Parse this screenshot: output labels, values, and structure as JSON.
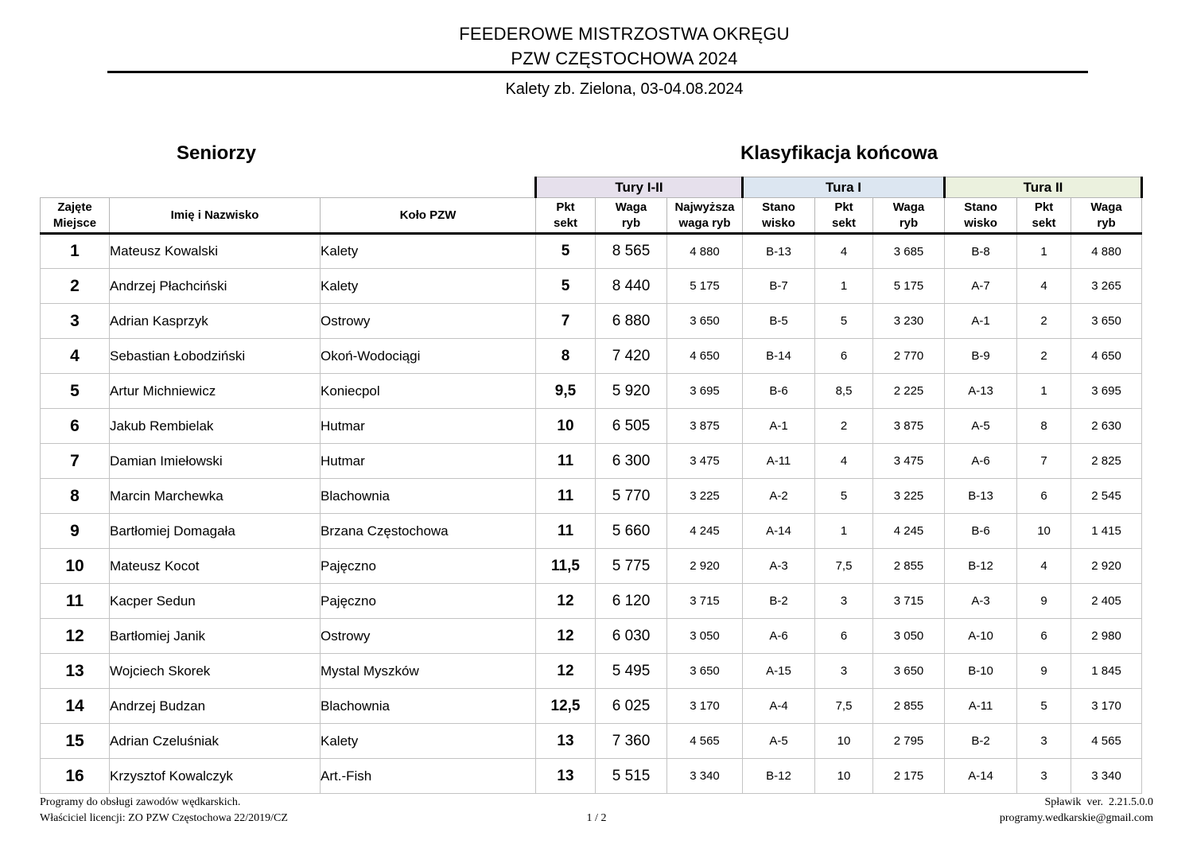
{
  "header": {
    "title_line1": "FEEDEROWE MISTRZOSTWA OKRĘGU",
    "title_line2": "PZW CZĘSTOCHOWA 2024",
    "subtitle": "Kalety zb. Zielona, 03-04.08.2024"
  },
  "sections": {
    "category_title": "Seniorzy",
    "classification_title": "Klasyfikacja końcowa"
  },
  "table": {
    "groups": [
      {
        "label": "Tury I-II",
        "color": "#e6e0ec"
      },
      {
        "label": "Tura I",
        "color": "#dce6f1"
      },
      {
        "label": "Tura II",
        "color": "#ebf1de"
      }
    ],
    "columns": [
      {
        "id": "place",
        "lines": [
          "Zajęte",
          "Miejsce"
        ]
      },
      {
        "id": "name",
        "lines": [
          "Imię i Nazwisko"
        ]
      },
      {
        "id": "club",
        "lines": [
          "Koło PZW"
        ]
      },
      {
        "id": "t12_pkt",
        "lines": [
          "Pkt",
          "sekt"
        ]
      },
      {
        "id": "t12_waga",
        "lines": [
          "Waga",
          "ryb"
        ]
      },
      {
        "id": "t12_best",
        "lines": [
          "Najwyższa",
          "waga ryb"
        ]
      },
      {
        "id": "t1_stan",
        "lines": [
          "Stano",
          "wisko"
        ]
      },
      {
        "id": "t1_pkt",
        "lines": [
          "Pkt",
          "sekt"
        ]
      },
      {
        "id": "t1_waga",
        "lines": [
          "Waga",
          "ryb"
        ]
      },
      {
        "id": "t2_stan",
        "lines": [
          "Stano",
          "wisko"
        ]
      },
      {
        "id": "t2_pkt",
        "lines": [
          "Pkt",
          "sekt"
        ]
      },
      {
        "id": "t2_waga",
        "lines": [
          "Waga",
          "ryb"
        ]
      }
    ],
    "row_fields": [
      "place",
      "name",
      "club",
      "t12_pkt",
      "t12_waga",
      "t12_best",
      "t1_stan",
      "t1_pkt",
      "t1_waga",
      "t2_stan",
      "t2_pkt",
      "t2_waga"
    ],
    "rows": [
      {
        "place": "1",
        "name": "Mateusz Kowalski",
        "club": "Kalety",
        "t12_pkt": "5",
        "t12_waga": "8 565",
        "t12_best": "4 880",
        "t1_stan": "B-13",
        "t1_pkt": "4",
        "t1_waga": "3 685",
        "t2_stan": "B-8",
        "t2_pkt": "1",
        "t2_waga": "4 880"
      },
      {
        "place": "2",
        "name": "Andrzej Płachciński",
        "club": "Kalety",
        "t12_pkt": "5",
        "t12_waga": "8 440",
        "t12_best": "5 175",
        "t1_stan": "B-7",
        "t1_pkt": "1",
        "t1_waga": "5 175",
        "t2_stan": "A-7",
        "t2_pkt": "4",
        "t2_waga": "3 265"
      },
      {
        "place": "3",
        "name": "Adrian Kasprzyk",
        "club": "Ostrowy",
        "t12_pkt": "7",
        "t12_waga": "6 880",
        "t12_best": "3 650",
        "t1_stan": "B-5",
        "t1_pkt": "5",
        "t1_waga": "3 230",
        "t2_stan": "A-1",
        "t2_pkt": "2",
        "t2_waga": "3 650"
      },
      {
        "place": "4",
        "name": "Sebastian Łobodziński",
        "club": "Okoń-Wodociągi",
        "t12_pkt": "8",
        "t12_waga": "7 420",
        "t12_best": "4 650",
        "t1_stan": "B-14",
        "t1_pkt": "6",
        "t1_waga": "2 770",
        "t2_stan": "B-9",
        "t2_pkt": "2",
        "t2_waga": "4 650"
      },
      {
        "place": "5",
        "name": "Artur Michniewicz",
        "club": "Koniecpol",
        "t12_pkt": "9,5",
        "t12_waga": "5 920",
        "t12_best": "3 695",
        "t1_stan": "B-6",
        "t1_pkt": "8,5",
        "t1_waga": "2 225",
        "t2_stan": "A-13",
        "t2_pkt": "1",
        "t2_waga": "3 695"
      },
      {
        "place": "6",
        "name": "Jakub Rembielak",
        "club": "Hutmar",
        "t12_pkt": "10",
        "t12_waga": "6 505",
        "t12_best": "3 875",
        "t1_stan": "A-1",
        "t1_pkt": "2",
        "t1_waga": "3 875",
        "t2_stan": "A-5",
        "t2_pkt": "8",
        "t2_waga": "2 630"
      },
      {
        "place": "7",
        "name": "Damian Imiełowski",
        "club": "Hutmar",
        "t12_pkt": "11",
        "t12_waga": "6 300",
        "t12_best": "3 475",
        "t1_stan": "A-11",
        "t1_pkt": "4",
        "t1_waga": "3 475",
        "t2_stan": "A-6",
        "t2_pkt": "7",
        "t2_waga": "2 825"
      },
      {
        "place": "8",
        "name": "Marcin Marchewka",
        "club": "Blachownia",
        "t12_pkt": "11",
        "t12_waga": "5 770",
        "t12_best": "3 225",
        "t1_stan": "A-2",
        "t1_pkt": "5",
        "t1_waga": "3 225",
        "t2_stan": "B-13",
        "t2_pkt": "6",
        "t2_waga": "2 545"
      },
      {
        "place": "9",
        "name": "Bartłomiej Domagała",
        "club": "Brzana Częstochowa",
        "t12_pkt": "11",
        "t12_waga": "5 660",
        "t12_best": "4 245",
        "t1_stan": "A-14",
        "t1_pkt": "1",
        "t1_waga": "4 245",
        "t2_stan": "B-6",
        "t2_pkt": "10",
        "t2_waga": "1 415"
      },
      {
        "place": "10",
        "name": "Mateusz Kocot",
        "club": "Pajęczno",
        "t12_pkt": "11,5",
        "t12_waga": "5 775",
        "t12_best": "2 920",
        "t1_stan": "A-3",
        "t1_pkt": "7,5",
        "t1_waga": "2 855",
        "t2_stan": "B-12",
        "t2_pkt": "4",
        "t2_waga": "2 920"
      },
      {
        "place": "11",
        "name": "Kacper Sedun",
        "club": "Pajęczno",
        "t12_pkt": "12",
        "t12_waga": "6 120",
        "t12_best": "3 715",
        "t1_stan": "B-2",
        "t1_pkt": "3",
        "t1_waga": "3 715",
        "t2_stan": "A-3",
        "t2_pkt": "9",
        "t2_waga": "2 405"
      },
      {
        "place": "12",
        "name": "Bartłomiej Janik",
        "club": "Ostrowy",
        "t12_pkt": "12",
        "t12_waga": "6 030",
        "t12_best": "3 050",
        "t1_stan": "A-6",
        "t1_pkt": "6",
        "t1_waga": "3 050",
        "t2_stan": "A-10",
        "t2_pkt": "6",
        "t2_waga": "2 980"
      },
      {
        "place": "13",
        "name": "Wojciech Skorek",
        "club": "Mystal Myszków",
        "t12_pkt": "12",
        "t12_waga": "5 495",
        "t12_best": "3 650",
        "t1_stan": "A-15",
        "t1_pkt": "3",
        "t1_waga": "3 650",
        "t2_stan": "B-10",
        "t2_pkt": "9",
        "t2_waga": "1 845"
      },
      {
        "place": "14",
        "name": "Andrzej Budzan",
        "club": "Blachownia",
        "t12_pkt": "12,5",
        "t12_waga": "6 025",
        "t12_best": "3 170",
        "t1_stan": "A-4",
        "t1_pkt": "7,5",
        "t1_waga": "2 855",
        "t2_stan": "A-11",
        "t2_pkt": "5",
        "t2_waga": "3 170"
      },
      {
        "place": "15",
        "name": "Adrian Czeluśniak",
        "club": "Kalety",
        "t12_pkt": "13",
        "t12_waga": "7 360",
        "t12_best": "4 565",
        "t1_stan": "A-5",
        "t1_pkt": "10",
        "t1_waga": "2 795",
        "t2_stan": "B-2",
        "t2_pkt": "3",
        "t2_waga": "4 565"
      },
      {
        "place": "16",
        "name": "Krzysztof Kowalczyk",
        "club": "Art.-Fish",
        "t12_pkt": "13",
        "t12_waga": "5 515",
        "t12_best": "3 340",
        "t1_stan": "B-12",
        "t1_pkt": "10",
        "t1_waga": "2 175",
        "t2_stan": "A-14",
        "t2_pkt": "3",
        "t2_waga": "3 340"
      }
    ]
  },
  "footer": {
    "left_line1": "Programy do obsługi zawodów wędkarskich.",
    "left_line2": "Właściciel licencji: ZO PZW Częstochowa 22/2019/CZ",
    "page_indicator": "1 / 2",
    "right_line1": "Spławik  ver.  2.21.5.0.0",
    "right_line2": "programy.wedkarskie@gmail.com"
  }
}
